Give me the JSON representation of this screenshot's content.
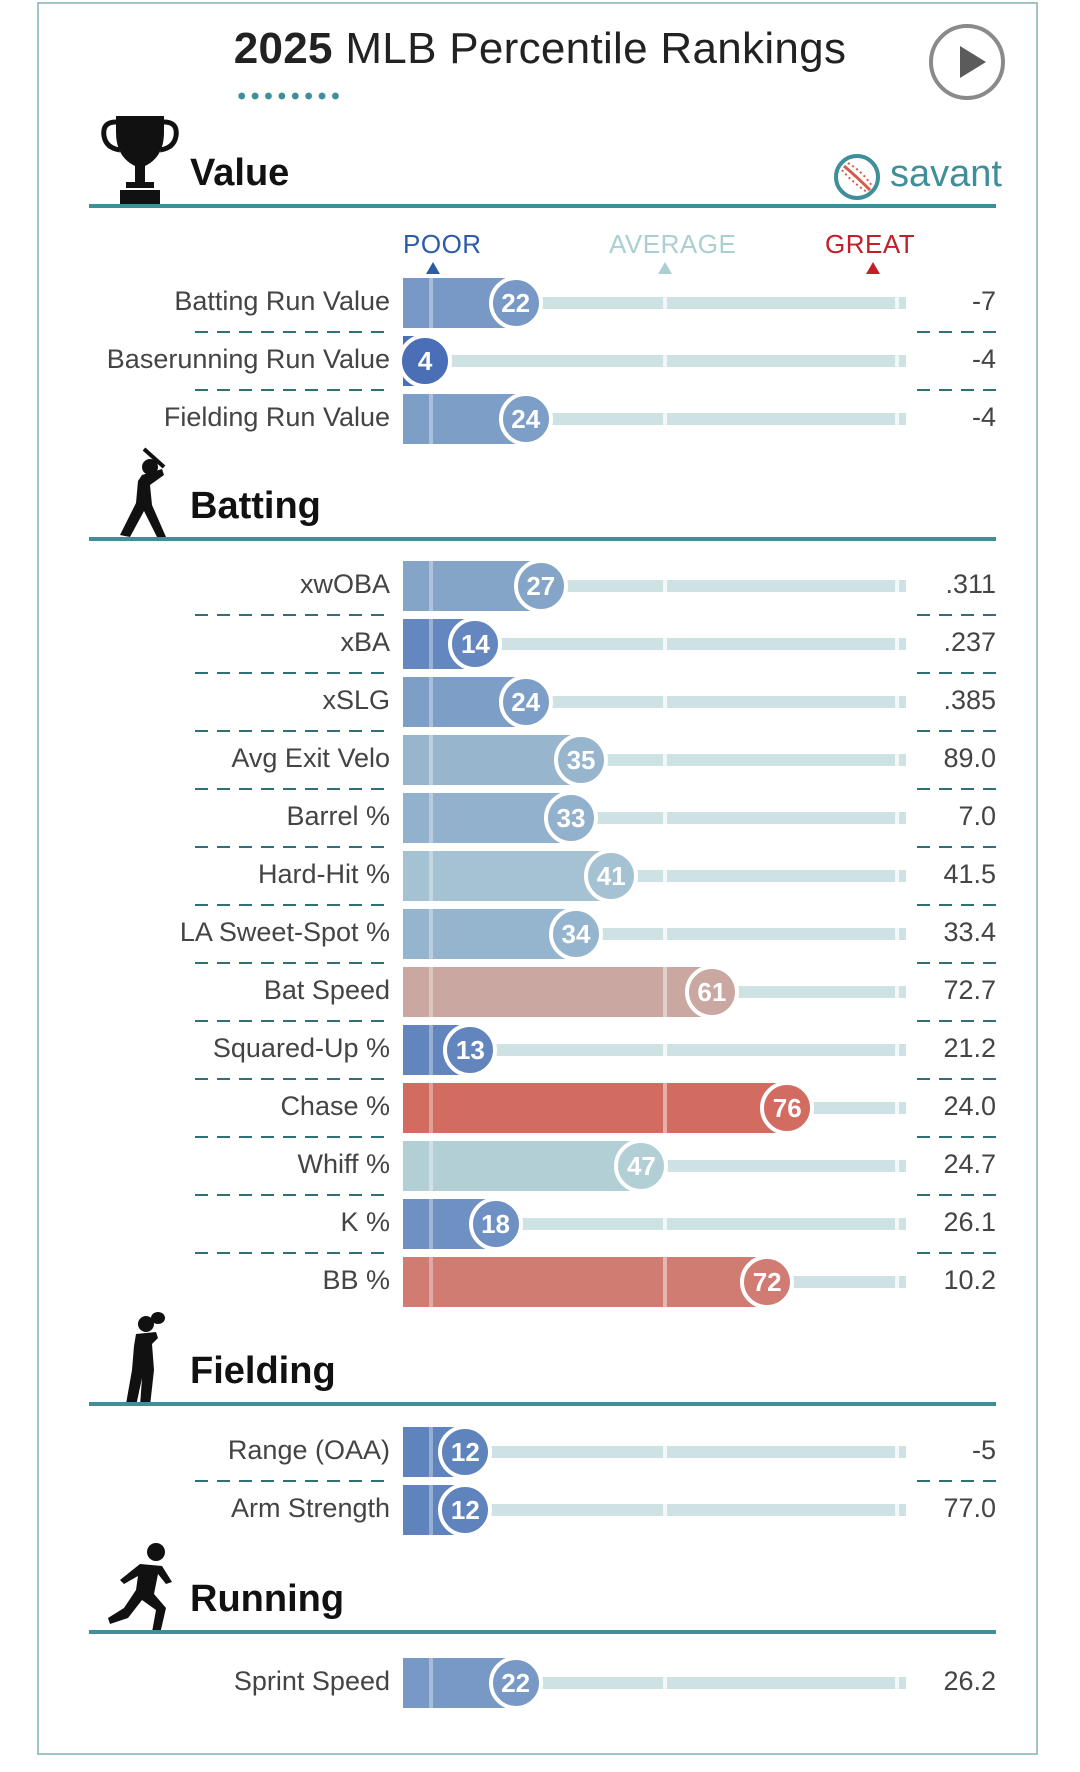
{
  "title": {
    "year": "2025",
    "rest": "MLB Percentile Rankings"
  },
  "brand": {
    "logo_text": "savant",
    "accent": "#3f8f9a"
  },
  "scale": {
    "poor": "POOR",
    "average": "AVERAGE",
    "great": "GREAT",
    "poor_color": "#2a5ca8",
    "average_color": "#a9cfd1",
    "great_color": "#c0202a"
  },
  "icons": {
    "play": "play-icon",
    "value": "trophy-icon",
    "batting": "batter-icon",
    "fielding": "fielder-icon",
    "running": "runner-icon",
    "brand": "baseball-icon"
  },
  "chart_data": {
    "type": "bar",
    "title": "2025 MLB Percentile Rankings",
    "xlim": [
      0,
      100
    ],
    "scale_labels": [
      "POOR",
      "AVERAGE",
      "GREAT"
    ],
    "sections": [
      {
        "name": "Value",
        "icon": "trophy-icon",
        "rows": [
          {
            "label": "Batting Run Value",
            "percentile": 22,
            "value": "-7"
          },
          {
            "label": "Baserunning Run Value",
            "percentile": 4,
            "value": "-4"
          },
          {
            "label": "Fielding Run Value",
            "percentile": 24,
            "value": "-4"
          }
        ]
      },
      {
        "name": "Batting",
        "icon": "batter-icon",
        "rows": [
          {
            "label": "xwOBA",
            "percentile": 27,
            "value": ".311"
          },
          {
            "label": "xBA",
            "percentile": 14,
            "value": ".237"
          },
          {
            "label": "xSLG",
            "percentile": 24,
            "value": ".385"
          },
          {
            "label": "Avg Exit Velo",
            "percentile": 35,
            "value": "89.0"
          },
          {
            "label": "Barrel %",
            "percentile": 33,
            "value": "7.0"
          },
          {
            "label": "Hard-Hit %",
            "percentile": 41,
            "value": "41.5"
          },
          {
            "label": "LA Sweet-Spot %",
            "percentile": 34,
            "value": "33.4"
          },
          {
            "label": "Bat Speed",
            "percentile": 61,
            "value": "72.7"
          },
          {
            "label": "Squared-Up %",
            "percentile": 13,
            "value": "21.2"
          },
          {
            "label": "Chase %",
            "percentile": 76,
            "value": "24.0"
          },
          {
            "label": "Whiff %",
            "percentile": 47,
            "value": "24.7"
          },
          {
            "label": "K %",
            "percentile": 18,
            "value": "26.1"
          },
          {
            "label": "BB %",
            "percentile": 72,
            "value": "10.2"
          }
        ]
      },
      {
        "name": "Fielding",
        "icon": "fielder-icon",
        "rows": [
          {
            "label": "Range (OAA)",
            "percentile": 12,
            "value": "-5"
          },
          {
            "label": "Arm Strength",
            "percentile": 12,
            "value": "77.0"
          }
        ]
      },
      {
        "name": "Running",
        "icon": "runner-icon",
        "rows": [
          {
            "label": "Sprint Speed",
            "percentile": 22,
            "value": "26.2"
          }
        ]
      }
    ]
  }
}
